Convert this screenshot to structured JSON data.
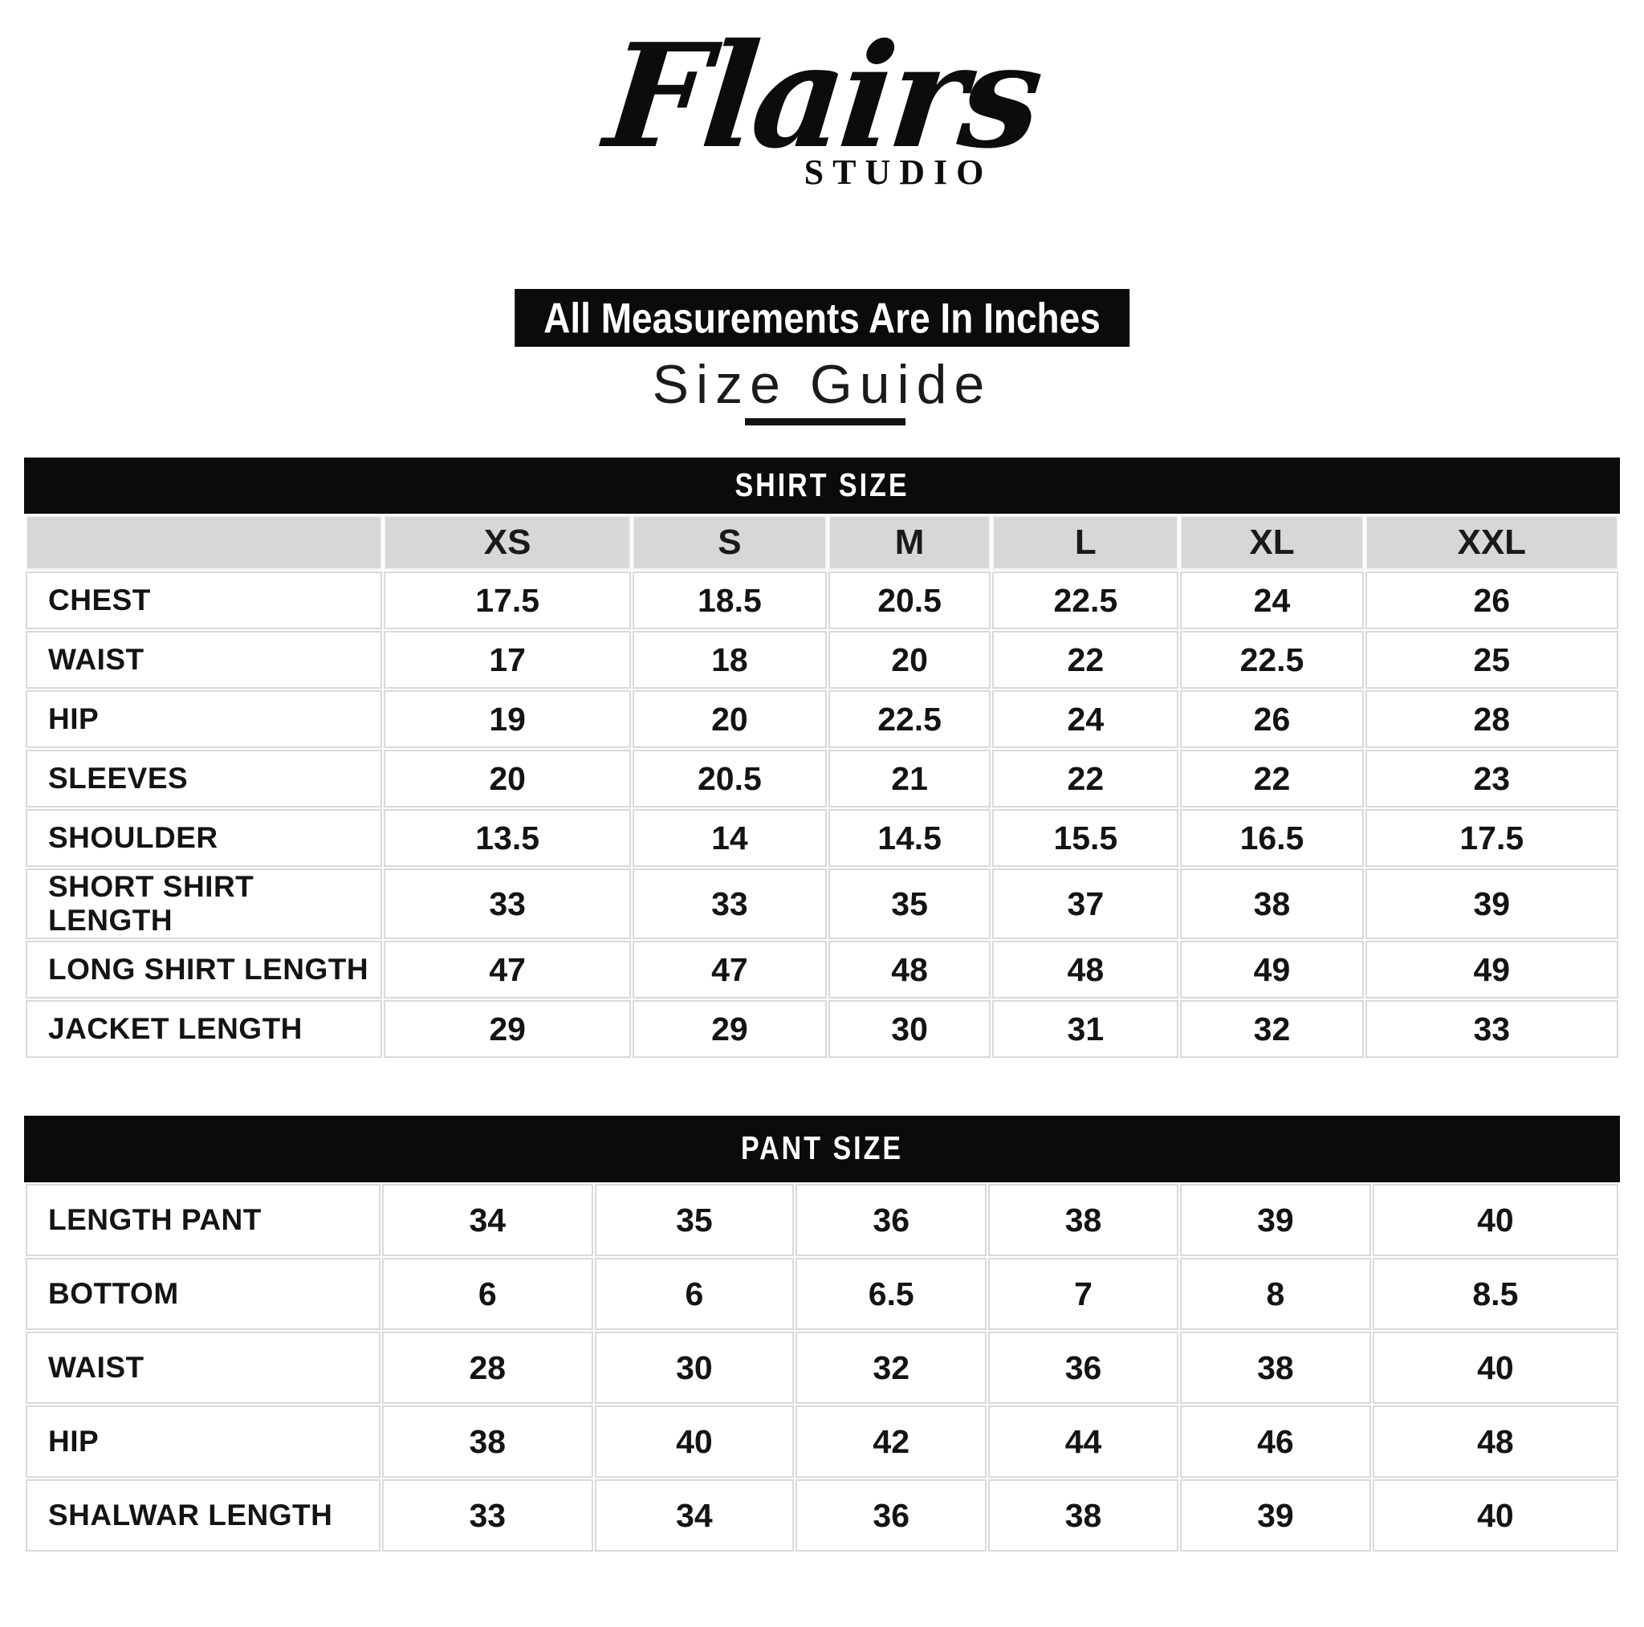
{
  "logo": {
    "brand": "Flairs",
    "subtitle": "STUDIO"
  },
  "banner_text": "All Measurements Are In Inches",
  "title": "Size Guide",
  "colors": {
    "bar_black": "#0b0b0b",
    "header_gray": "#d7d7d7",
    "grid_line": "#d9d9d9",
    "text": "#141414",
    "background": "#ffffff"
  },
  "shirt_table": {
    "header": "SHIRT SIZE",
    "columns": [
      "",
      "XS",
      "S",
      "M",
      "L",
      "XL",
      "XXL"
    ],
    "rows": [
      {
        "label": "CHEST",
        "values": [
          "17.5",
          "18.5",
          "20.5",
          "22.5",
          "24",
          "26"
        ]
      },
      {
        "label": "WAIST",
        "values": [
          "17",
          "18",
          "20",
          "22",
          "22.5",
          "25"
        ]
      },
      {
        "label": "HIP",
        "values": [
          "19",
          "20",
          "22.5",
          "24",
          "26",
          "28"
        ]
      },
      {
        "label": "SLEEVES",
        "values": [
          "20",
          "20.5",
          "21",
          "22",
          "22",
          "23"
        ]
      },
      {
        "label": "SHOULDER",
        "values": [
          "13.5",
          "14",
          "14.5",
          "15.5",
          "16.5",
          "17.5"
        ]
      },
      {
        "label": "SHORT SHIRT LENGTH",
        "values": [
          "33",
          "33",
          "35",
          "37",
          "38",
          "39"
        ]
      },
      {
        "label": "LONG SHIRT LENGTH",
        "values": [
          "47",
          "47",
          "48",
          "48",
          "49",
          "49"
        ]
      },
      {
        "label": "JACKET LENGTH",
        "values": [
          "29",
          "29",
          "30",
          "31",
          "32",
          "33"
        ]
      }
    ]
  },
  "pant_table": {
    "header": "PANT SIZE",
    "columns": null,
    "rows": [
      {
        "label": "LENGTH PANT",
        "values": [
          "34",
          "35",
          "36",
          "38",
          "39",
          "40"
        ]
      },
      {
        "label": "BOTTOM",
        "values": [
          "6",
          "6",
          "6.5",
          "7",
          "8",
          "8.5"
        ]
      },
      {
        "label": "WAIST",
        "values": [
          "28",
          "30",
          "32",
          "36",
          "38",
          "40"
        ]
      },
      {
        "label": "HIP",
        "values": [
          "38",
          "40",
          "42",
          "44",
          "46",
          "48"
        ]
      },
      {
        "label": "SHALWAR LENGTH",
        "values": [
          "33",
          "34",
          "36",
          "38",
          "39",
          "40"
        ]
      }
    ]
  }
}
